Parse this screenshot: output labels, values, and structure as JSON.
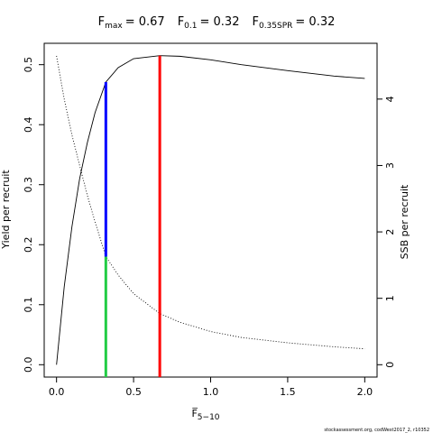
{
  "chart_data": {
    "type": "line",
    "title_items": [
      {
        "symbol": "F",
        "subscript": "max",
        "label": "= 0.67"
      },
      {
        "symbol": "F",
        "subscript": "0.1",
        "label": "= 0.32"
      },
      {
        "symbol": "F",
        "subscript": "0.35SPR",
        "label": "= 0.32"
      }
    ],
    "x_label": "F̅",
    "x_label_subscript": "5−10",
    "y_label": "Yield per recruit",
    "y2_label": "SSB per recruit",
    "footnote": "stockassessment.org, codWest2017_2, r10352",
    "x": [
      0,
      0.05,
      0.1,
      0.15,
      0.2,
      0.25,
      0.32,
      0.4,
      0.5,
      0.67,
      0.8,
      1.0,
      1.2,
      1.5,
      1.8,
      2.0
    ],
    "series": [
      {
        "name": "Yield per recruit",
        "color": "#000000",
        "axis": "y",
        "dash": "solid",
        "values": [
          0,
          0.13,
          0.23,
          0.31,
          0.37,
          0.42,
          0.471,
          0.495,
          0.51,
          0.515,
          0.514,
          0.508,
          0.5,
          0.49,
          0.481,
          0.477
        ]
      },
      {
        "name": "SSB per recruit",
        "color": "#000000",
        "axis": "y2",
        "dash": "dotted",
        "values": [
          4.65,
          4.0,
          3.46,
          3.0,
          2.55,
          2.15,
          1.63,
          1.35,
          1.07,
          0.77,
          0.64,
          0.5,
          0.41,
          0.33,
          0.27,
          0.24
        ]
      }
    ],
    "reference_lines": [
      {
        "x": 0.67,
        "y_top": 0.515,
        "color": "#ff0000"
      },
      {
        "x": 0.32,
        "y_top": 0.471,
        "y_bottom": 0.18,
        "color": "#0000ff"
      },
      {
        "x": 0.32,
        "y_top": 0.18,
        "color": "#22cc44"
      }
    ],
    "xlim": [
      -0.08,
      2.08
    ],
    "xticks": [
      {
        "value": 0,
        "label": "0.0"
      },
      0.5,
      {
        "value": 1,
        "label": "1.0"
      },
      1.5,
      {
        "value": 2,
        "label": "2.0"
      }
    ],
    "ylim": [
      -0.0206,
      0.5356
    ],
    "yticks": [
      {
        "value": 0,
        "label": "0.0"
      },
      0.1,
      0.2,
      0.3,
      0.4,
      0.5
    ],
    "y2lim": [
      -0.186,
      4.84
    ],
    "y2ticks": [
      0,
      1,
      2,
      3,
      4
    ]
  }
}
